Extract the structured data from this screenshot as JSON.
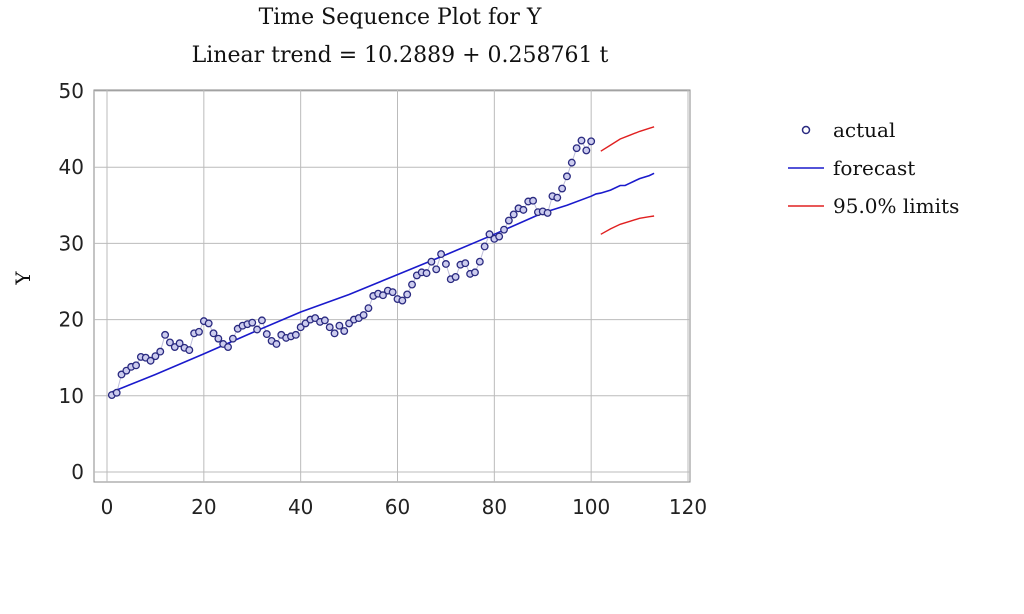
{
  "chart_data": {
    "type": "scatter",
    "title": "Time Sequence Plot for Y",
    "subtitle": "Linear trend = 10.2889 + 0.258761 t",
    "xlabel": "",
    "ylabel": "Y",
    "xlim": [
      0,
      120
    ],
    "ylim": [
      0,
      50
    ],
    "xticks": [
      0,
      20,
      40,
      60,
      80,
      100,
      120
    ],
    "yticks": [
      0,
      10,
      20,
      30,
      40,
      50
    ],
    "grid": true,
    "legend_position": "right",
    "colors": {
      "actual": "#2a2a80",
      "forecast": "#1a1acc",
      "limits": "#e02020",
      "grid": "#bbbbbb"
    },
    "series": [
      {
        "name": "actual",
        "kind": "points",
        "x": [
          1,
          2,
          3,
          4,
          5,
          6,
          7,
          8,
          9,
          10,
          11,
          12,
          13,
          14,
          15,
          16,
          17,
          18,
          19,
          20,
          21,
          22,
          23,
          24,
          25,
          26,
          27,
          28,
          29,
          30,
          31,
          32,
          33,
          34,
          35,
          36,
          37,
          38,
          39,
          40,
          41,
          42,
          43,
          44,
          45,
          46,
          47,
          48,
          49,
          50,
          51,
          52,
          53,
          54,
          55,
          56,
          57,
          58,
          59,
          60,
          61,
          62,
          63,
          64,
          65,
          66,
          67,
          68,
          69,
          70,
          71,
          72,
          73,
          74,
          75,
          76,
          77,
          78,
          79,
          80,
          81,
          82,
          83,
          84,
          85,
          86,
          87,
          88,
          89,
          90,
          91,
          92,
          93,
          94,
          95,
          96,
          97,
          98,
          99,
          100
        ],
        "values": [
          10.1,
          10.4,
          12.8,
          13.3,
          13.8,
          14.0,
          15.1,
          15.0,
          14.6,
          15.2,
          15.8,
          18.0,
          17.0,
          16.4,
          16.9,
          16.3,
          16.0,
          18.2,
          18.4,
          19.8,
          19.5,
          18.2,
          17.5,
          16.8,
          16.4,
          17.5,
          18.8,
          19.2,
          19.4,
          19.6,
          18.7,
          19.9,
          18.1,
          17.2,
          16.8,
          18.0,
          17.6,
          17.8,
          18.0,
          19.0,
          19.5,
          20.0,
          20.2,
          19.7,
          19.9,
          19.0,
          18.2,
          19.2,
          18.5,
          19.5,
          20.0,
          20.2,
          20.6,
          21.5,
          23.1,
          23.4,
          23.2,
          23.8,
          23.6,
          22.7,
          22.5,
          23.3,
          24.6,
          25.8,
          26.2,
          26.1,
          27.6,
          26.6,
          28.6,
          27.3,
          25.3,
          25.6,
          27.2,
          27.4,
          26.0,
          26.2,
          27.6,
          29.6,
          31.2,
          30.6,
          30.9,
          31.8,
          33.0,
          33.8,
          34.6,
          34.4,
          35.5,
          35.6,
          34.1,
          34.2,
          34.0,
          36.2,
          36.0,
          37.2,
          38.8,
          40.6,
          42.5,
          43.5,
          42.2,
          43.4
        ]
      },
      {
        "name": "forecast",
        "kind": "line",
        "x": [
          1,
          10,
          20,
          30,
          40,
          50,
          60,
          70,
          80,
          85,
          90,
          95,
          100,
          101,
          102,
          104,
          106,
          107,
          108,
          110,
          112,
          113
        ],
        "values": [
          10.5,
          12.8,
          15.5,
          18.3,
          21.0,
          23.3,
          25.9,
          28.5,
          31.2,
          32.6,
          34.0,
          35.0,
          36.2,
          36.5,
          36.6,
          37.0,
          37.6,
          37.6,
          37.9,
          38.5,
          38.9,
          39.2
        ]
      },
      {
        "name": "95.0% limits",
        "kind": "band",
        "x": [
          102,
          104,
          106,
          108,
          110,
          112,
          113
        ],
        "upper": [
          42.1,
          42.9,
          43.7,
          44.2,
          44.7,
          45.1,
          45.3
        ],
        "lower": [
          31.2,
          31.9,
          32.5,
          32.9,
          33.3,
          33.5,
          33.6
        ]
      }
    ]
  }
}
